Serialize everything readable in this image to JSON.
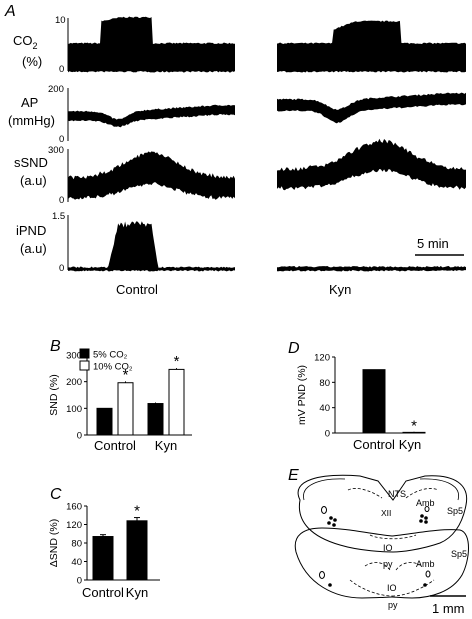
{
  "figure": {
    "panel_letters": [
      "A",
      "B",
      "C",
      "D",
      "E"
    ]
  },
  "panel_a": {
    "channels": [
      {
        "label_line1": "CO",
        "label_sub": "2",
        "label_line2": "(%)",
        "max_tick": "10",
        "min_tick": "0"
      },
      {
        "label_line1": "AP",
        "label_sub": "",
        "label_line2": "(mmHg)",
        "max_tick": "200",
        "min_tick": "0"
      },
      {
        "label_line1": "sSND",
        "label_sub": "",
        "label_line2": "(a.u)",
        "max_tick": "300",
        "min_tick": "0"
      },
      {
        "label_line1": "iPND",
        "label_sub": "",
        "label_line2": "(a.u)",
        "max_tick": "1.5",
        "min_tick": "0"
      }
    ],
    "conditions": [
      "Control",
      "Kyn"
    ],
    "scale_bar_label": "5 min"
  },
  "chart_data": [
    {
      "type": "bar",
      "panel": "B",
      "ylabel": "SND (%)",
      "categories": [
        "Control",
        "Kyn"
      ],
      "series": [
        {
          "name": "5% CO2",
          "values": [
            100,
            118
          ],
          "errors": [
            0,
            4
          ],
          "color": "#000000"
        },
        {
          "name": "10% CO2",
          "values": [
            196,
            246
          ],
          "errors": [
            5,
            5
          ],
          "color": "#ffffff"
        }
      ],
      "significance": [
        false,
        true,
        false,
        true
      ],
      "ylim": [
        0,
        300
      ],
      "yticks": [
        "0",
        "100",
        "200",
        "300"
      ],
      "legend": [
        "5% CO₂",
        "10% CO₂"
      ]
    },
    {
      "type": "bar",
      "panel": "C",
      "ylabel": "ΔSND (%)",
      "categories": [
        "Control",
        "Kyn"
      ],
      "values": [
        94,
        128
      ],
      "errors": [
        4,
        7
      ],
      "significance": [
        false,
        true
      ],
      "ylim": [
        0,
        160
      ],
      "yticks": [
        "0",
        "40",
        "80",
        "120",
        "160"
      ]
    },
    {
      "type": "bar",
      "panel": "D",
      "ylabel": "mV PND (%)",
      "categories": [
        "Control",
        "Kyn"
      ],
      "values": [
        100,
        1
      ],
      "errors": [
        0,
        1
      ],
      "significance": [
        false,
        true
      ],
      "ylim": [
        0,
        120
      ],
      "yticks": [
        "0",
        "40",
        "80",
        "120"
      ]
    }
  ],
  "panel_e": {
    "labels": [
      "NTS",
      "XII",
      "Sp5",
      "Amb",
      "IO",
      "py",
      "Sp5",
      "Amb",
      "IO",
      "py"
    ],
    "scale_bar_label": "1 mm"
  },
  "significance_marker": "*"
}
